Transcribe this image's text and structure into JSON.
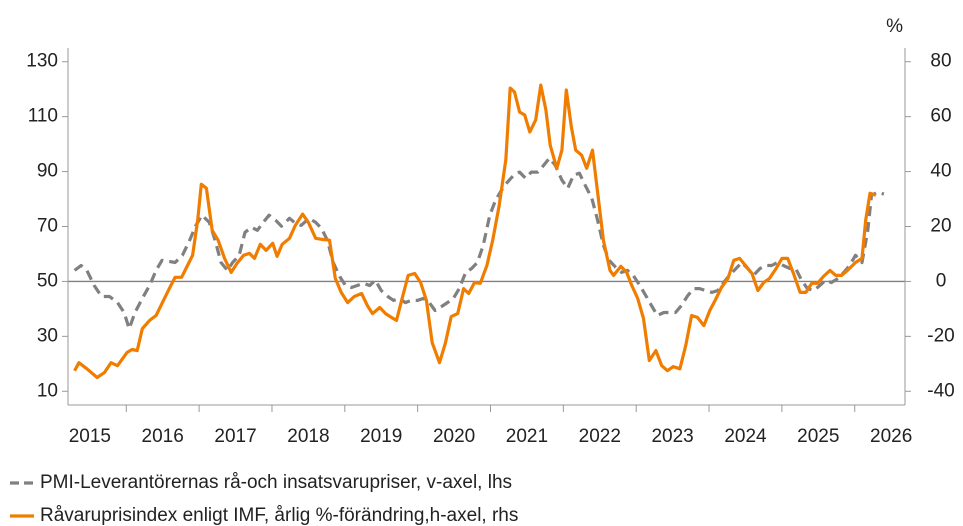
{
  "chart_data": {
    "type": "line",
    "y2_unit": "%",
    "xlim": [
      2015.2,
      2026.69
    ],
    "xticks": [
      {
        "value": 2015.5,
        "label": "2015"
      },
      {
        "value": 2016.5,
        "label": "2016"
      },
      {
        "value": 2017.5,
        "label": "2017"
      },
      {
        "value": 2018.5,
        "label": "2018"
      },
      {
        "value": 2019.5,
        "label": "2019"
      },
      {
        "value": 2020.5,
        "label": "2020"
      },
      {
        "value": 2021.5,
        "label": "2021"
      },
      {
        "value": 2022.5,
        "label": "2022"
      },
      {
        "value": 2023.5,
        "label": "2023"
      },
      {
        "value": 2024.5,
        "label": "2024"
      },
      {
        "value": 2025.5,
        "label": "2025"
      },
      {
        "value": 2026.5,
        "label": "2026"
      }
    ],
    "x_tick_marks": [
      2016,
      2017,
      2018,
      2019,
      2020,
      2021,
      2022,
      2023,
      2024,
      2025,
      2026
    ],
    "ylim": [
      5,
      135
    ],
    "yticks": [
      10,
      30,
      50,
      70,
      90,
      110,
      130
    ],
    "y2lim": [
      -45,
      85
    ],
    "y2ticks": [
      -40,
      -20,
      0,
      20,
      40,
      60,
      80
    ],
    "reference_line_y2": 0,
    "grid": false,
    "legend": "bottom-left",
    "series": [
      {
        "name": "PMI-Leverantörernas rå-och insatsvarupriser, v-axel, lhs",
        "color": "#808080",
        "dash": true,
        "axis": "y",
        "x": [
          2015.29,
          2015.38,
          2015.46,
          2015.56,
          2015.66,
          2015.77,
          2015.88,
          2015.97,
          2016.04,
          2016.12,
          2016.22,
          2016.32,
          2016.41,
          2016.49,
          2016.59,
          2016.67,
          2016.77,
          2016.87,
          2016.95,
          2017.04,
          2017.14,
          2017.22,
          2017.3,
          2017.39,
          2017.46,
          2017.55,
          2017.63,
          2017.72,
          2017.8,
          2017.88,
          2017.96,
          2018.05,
          2018.13,
          2018.24,
          2018.32,
          2018.4,
          2018.51,
          2018.6,
          2018.68,
          2018.76,
          2018.84,
          2018.93,
          2019.01,
          2019.09,
          2019.17,
          2019.26,
          2019.34,
          2019.42,
          2019.5,
          2019.59,
          2019.67,
          2019.75,
          2019.83,
          2019.91,
          2020.0,
          2020.08,
          2020.16,
          2020.24,
          2020.33,
          2020.41,
          2020.49,
          2020.57,
          2020.66,
          2020.74,
          2020.82,
          2020.9,
          2020.99,
          2021.07,
          2021.15,
          2021.23,
          2021.32,
          2021.4,
          2021.48,
          2021.56,
          2021.65,
          2021.73,
          2021.81,
          2021.89,
          2021.98,
          2022.06,
          2022.14,
          2022.22,
          2022.3,
          2022.39,
          2022.47,
          2022.55,
          2022.63,
          2022.72,
          2022.8,
          2022.88,
          2022.96,
          2023.05,
          2023.13,
          2023.21,
          2023.29,
          2023.38,
          2023.46,
          2023.54,
          2023.62,
          2023.71,
          2023.79,
          2023.87,
          2023.95,
          2024.04,
          2024.12,
          2024.2,
          2024.28,
          2024.37,
          2024.45,
          2024.53,
          2024.61,
          2024.7,
          2024.78,
          2024.86,
          2024.94,
          2025.02,
          2025.11,
          2025.19,
          2025.27,
          2025.35,
          2025.44,
          2025.52,
          2025.6,
          2025.68,
          2025.77,
          2025.85,
          2025.93,
          2026.01,
          2026.1,
          2026.18,
          2026.23,
          2026.32,
          2026.4
        ],
        "values": [
          54.0,
          55.8,
          54.0,
          48.5,
          44.5,
          44.5,
          42.3,
          38.7,
          32.8,
          38.7,
          43.8,
          48.5,
          54.0,
          57.7,
          57.3,
          56.9,
          59.5,
          65.0,
          70.1,
          74.1,
          71.5,
          65.0,
          56.9,
          54.0,
          56.9,
          59.5,
          67.9,
          69.7,
          68.6,
          71.5,
          74.1,
          72.3,
          70.1,
          73.0,
          71.2,
          70.4,
          73.0,
          71.5,
          69.3,
          65.0,
          56.9,
          51.8,
          48.5,
          47.8,
          48.5,
          49.3,
          48.5,
          50.4,
          46.7,
          44.5,
          43.1,
          43.8,
          42.3,
          43.1,
          43.1,
          43.8,
          42.3,
          39.4,
          40.9,
          42.3,
          43.8,
          47.4,
          53.3,
          54.7,
          56.9,
          63.1,
          74.1,
          79.6,
          83.2,
          86.1,
          88.7,
          89.8,
          87.6,
          89.8,
          89.8,
          92.3,
          94.9,
          92.3,
          86.9,
          83.9,
          88.7,
          89.4,
          85.0,
          80.3,
          72.3,
          63.1,
          57.7,
          55.1,
          53.3,
          54.0,
          52.2,
          48.5,
          44.9,
          41.2,
          37.6,
          38.7,
          38.7,
          38.7,
          41.2,
          44.9,
          47.4,
          47.4,
          46.7,
          46.0,
          46.7,
          49.6,
          52.2,
          54.7,
          56.9,
          54.7,
          52.2,
          54.7,
          55.8,
          55.8,
          56.9,
          55.8,
          54.7,
          54.7,
          50.4,
          47.4,
          46.7,
          48.5,
          50.4,
          49.6,
          51.1,
          53.3,
          55.8,
          59.5,
          56.9,
          68.6,
          81.4,
          82.5,
          81.8
        ]
      },
      {
        "name": "Råvaruprisindex enligt IMF, årlig %-förändring,h-axel, rhs",
        "color": "#f07d00",
        "dash": false,
        "axis": "y2",
        "x": [
          2015.29,
          2015.35,
          2015.46,
          2015.6,
          2015.7,
          2015.79,
          2015.88,
          2016.01,
          2016.08,
          2016.15,
          2016.22,
          2016.32,
          2016.41,
          2016.49,
          2016.59,
          2016.67,
          2016.76,
          2016.84,
          2016.91,
          2016.98,
          2017.03,
          2017.1,
          2017.18,
          2017.26,
          2017.35,
          2017.44,
          2017.52,
          2017.61,
          2017.69,
          2017.76,
          2017.84,
          2017.92,
          2018.01,
          2018.07,
          2018.14,
          2018.24,
          2018.32,
          2018.42,
          2018.5,
          2018.6,
          2018.69,
          2018.79,
          2018.87,
          2018.95,
          2019.04,
          2019.13,
          2019.23,
          2019.31,
          2019.38,
          2019.48,
          2019.56,
          2019.64,
          2019.71,
          2019.79,
          2019.87,
          2019.96,
          2020.04,
          2020.12,
          2020.2,
          2020.3,
          2020.38,
          2020.46,
          2020.55,
          2020.63,
          2020.7,
          2020.78,
          2020.86,
          2020.95,
          2021.03,
          2021.12,
          2021.21,
          2021.27,
          2021.33,
          2021.4,
          2021.47,
          2021.54,
          2021.62,
          2021.69,
          2021.76,
          2021.82,
          2021.91,
          2021.98,
          2022.04,
          2022.11,
          2022.17,
          2022.25,
          2022.32,
          2022.4,
          2022.47,
          2022.55,
          2022.64,
          2022.69,
          2022.79,
          2022.87,
          2022.94,
          2023.02,
          2023.1,
          2023.18,
          2023.27,
          2023.35,
          2023.43,
          2023.51,
          2023.6,
          2023.68,
          2023.76,
          2023.84,
          2023.93,
          2024.01,
          2024.09,
          2024.17,
          2024.26,
          2024.34,
          2024.42,
          2024.5,
          2024.59,
          2024.67,
          2024.75,
          2024.83,
          2024.92,
          2025.0,
          2025.08,
          2025.16,
          2025.25,
          2025.33,
          2025.41,
          2025.49,
          2025.57,
          2025.66,
          2025.74,
          2025.82,
          2025.9,
          2026.01,
          2026.1,
          2026.15,
          2026.21,
          2026.29
        ],
        "values": [
          -32.5,
          -29.6,
          -31.8,
          -35.0,
          -33.2,
          -29.6,
          -30.7,
          -25.9,
          -24.8,
          -25.2,
          -17.2,
          -14.2,
          -12.4,
          -8.0,
          -2.6,
          1.5,
          1.5,
          5.8,
          9.5,
          22.3,
          35.4,
          33.9,
          18.6,
          15.0,
          8.4,
          3.3,
          6.6,
          9.5,
          10.2,
          8.4,
          13.5,
          11.3,
          13.9,
          9.1,
          13.5,
          15.7,
          20.4,
          24.5,
          21.5,
          15.7,
          15.3,
          15.0,
          1.1,
          -4.0,
          -7.7,
          -5.5,
          -4.4,
          -8.8,
          -11.7,
          -9.5,
          -11.7,
          -13.1,
          -14.2,
          -5.8,
          2.2,
          2.9,
          -0.4,
          -6.9,
          -22.3,
          -29.6,
          -22.6,
          -12.8,
          -11.7,
          -2.6,
          -4.4,
          -0.4,
          -0.7,
          5.8,
          15.0,
          27.7,
          44.2,
          70.4,
          69.0,
          61.7,
          60.6,
          54.4,
          58.8,
          71.5,
          62.4,
          49.6,
          41.2,
          47.8,
          69.7,
          56.2,
          47.8,
          46.0,
          41.2,
          47.8,
          32.5,
          15.0,
          4.0,
          2.2,
          5.5,
          3.3,
          -1.5,
          -6.2,
          -13.5,
          -28.8,
          -25.2,
          -30.7,
          -32.5,
          -31.0,
          -31.8,
          -23.4,
          -12.4,
          -13.1,
          -16.1,
          -10.6,
          -6.6,
          -2.2,
          1.1,
          7.7,
          8.4,
          5.8,
          2.9,
          -3.3,
          -0.4,
          1.1,
          4.7,
          8.4,
          8.4,
          2.9,
          -4.0,
          -4.0,
          -0.7,
          -0.7,
          1.8,
          4.0,
          2.2,
          2.2,
          4.0,
          6.9,
          8.4,
          22.3,
          32.1,
          31.4
        ]
      }
    ]
  }
}
